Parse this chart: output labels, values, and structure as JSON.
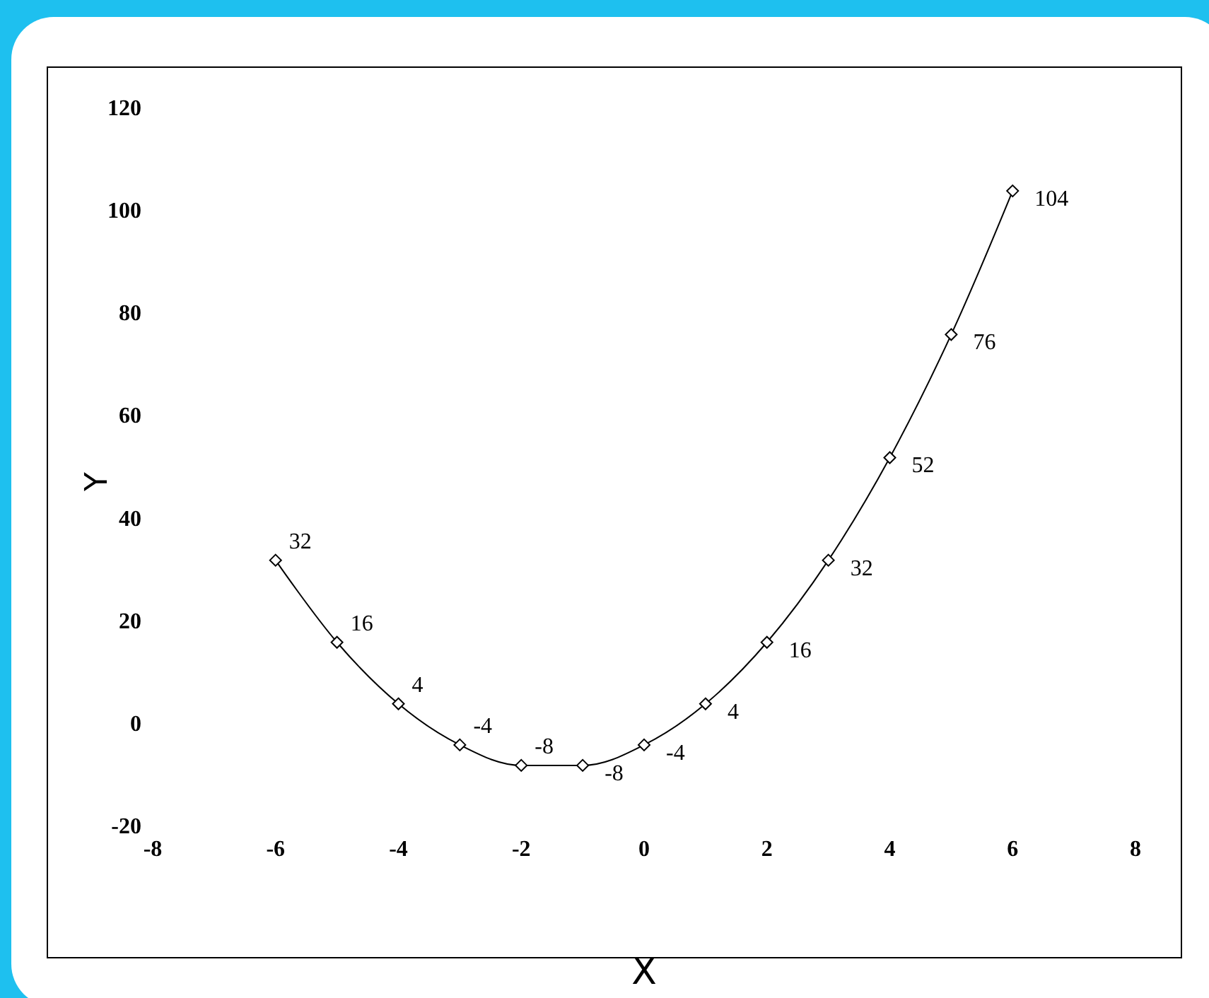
{
  "chart_data": {
    "type": "line",
    "xlabel": "X",
    "ylabel": "Y",
    "x": [
      -6,
      -5,
      -4,
      -3,
      -2,
      -1,
      0,
      1,
      2,
      3,
      4,
      5,
      6
    ],
    "values": [
      32,
      16,
      4,
      -4,
      -8,
      -8,
      -4,
      4,
      16,
      32,
      52,
      76,
      104
    ],
    "color": "#000000",
    "marker": "diamond",
    "data_labels": true,
    "grid": false,
    "xlim": [
      -8,
      8
    ],
    "xticks": [
      -8,
      -6,
      -4,
      -2,
      0,
      2,
      4,
      6,
      8
    ],
    "ylim": [
      -20,
      120
    ],
    "yticks": [
      -20,
      0,
      20,
      40,
      60,
      80,
      100,
      120
    ]
  }
}
